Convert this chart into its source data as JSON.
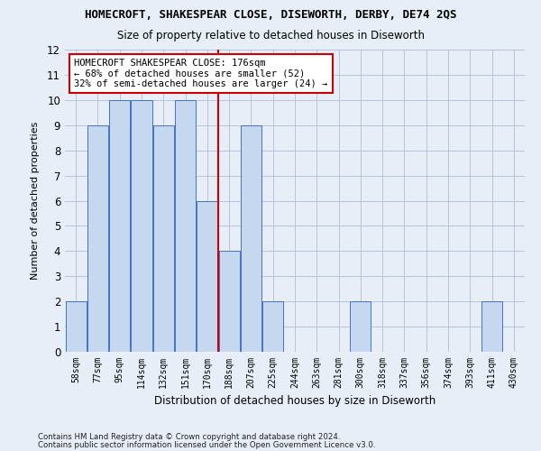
{
  "title": "HOMECROFT, SHAKESPEAR CLOSE, DISEWORTH, DERBY, DE74 2QS",
  "subtitle": "Size of property relative to detached houses in Diseworth",
  "xlabel": "Distribution of detached houses by size in Diseworth",
  "ylabel": "Number of detached properties",
  "footer1": "Contains HM Land Registry data © Crown copyright and database right 2024.",
  "footer2": "Contains public sector information licensed under the Open Government Licence v3.0.",
  "categories": [
    "58sqm",
    "77sqm",
    "95sqm",
    "114sqm",
    "132sqm",
    "151sqm",
    "170sqm",
    "188sqm",
    "207sqm",
    "225sqm",
    "244sqm",
    "263sqm",
    "281sqm",
    "300sqm",
    "318sqm",
    "337sqm",
    "356sqm",
    "374sqm",
    "393sqm",
    "411sqm",
    "430sqm"
  ],
  "values": [
    2,
    9,
    10,
    10,
    9,
    10,
    6,
    4,
    9,
    2,
    0,
    0,
    0,
    2,
    0,
    0,
    0,
    0,
    0,
    2,
    0
  ],
  "bar_color": "#c5d8f0",
  "bar_edge_color": "#4472c4",
  "vline_color": "#cc0000",
  "annotation_text": "HOMECROFT SHAKESPEAR CLOSE: 176sqm\n← 68% of detached houses are smaller (52)\n32% of semi-detached houses are larger (24) →",
  "annotation_box_color": "#ffffff",
  "annotation_box_edge": "#cc0000",
  "ylim": [
    0,
    12
  ],
  "yticks": [
    0,
    1,
    2,
    3,
    4,
    5,
    6,
    7,
    8,
    9,
    10,
    11,
    12
  ],
  "fig_bg": "#e8eef8",
  "plot_bg": "#e8eef8",
  "grid_color": "#b0bcd4"
}
